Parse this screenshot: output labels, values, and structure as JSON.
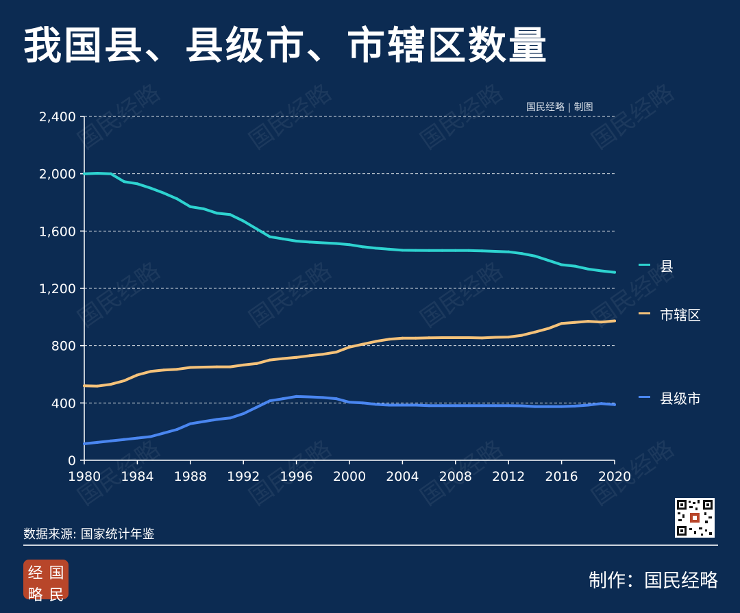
{
  "title": "我国县、县级市、市辖区数量",
  "credit_top": "国民经略 | 制图",
  "source": "数据来源: 国家统计年鉴",
  "maker": "制作：国民经略",
  "logo_chars": [
    "经",
    "国",
    "略",
    "民"
  ],
  "watermark": "国民经略",
  "colors": {
    "background": "#0c2b52",
    "county": "#2ed3d0",
    "district": "#f5c27a",
    "county_city": "#4a86f0",
    "grid": "#ffffff",
    "logo": "#b8462a"
  },
  "legend": [
    {
      "label": "县",
      "color": "#2ed3d0"
    },
    {
      "label": "市辖区",
      "color": "#f5c27a"
    },
    {
      "label": "县级市",
      "color": "#4a86f0"
    }
  ],
  "chart_data": {
    "type": "line",
    "title": "我国县、县级市、市辖区数量",
    "xlabel": "",
    "ylabel": "",
    "ylim": [
      0,
      2400
    ],
    "xlim": [
      1980,
      2020
    ],
    "yticks": [
      0,
      400,
      800,
      1200,
      1600,
      2000,
      2400
    ],
    "ytick_labels": [
      "0",
      "400",
      "800",
      "1,200",
      "1,600",
      "2,000",
      "2,400"
    ],
    "xticks": [
      1980,
      1984,
      1988,
      1992,
      1996,
      2000,
      2004,
      2008,
      2012,
      2016,
      2020
    ],
    "xtick_labels": [
      "1980",
      "1984",
      "1988",
      "1992",
      "1996",
      "2000",
      "2004",
      "2008",
      "2012",
      "2016",
      "2020"
    ],
    "grid": true,
    "x": [
      1980,
      1981,
      1982,
      1983,
      1984,
      1985,
      1986,
      1987,
      1988,
      1989,
      1990,
      1991,
      1992,
      1993,
      1994,
      1995,
      1996,
      1997,
      1998,
      1999,
      2000,
      2001,
      2002,
      2003,
      2004,
      2005,
      2006,
      2007,
      2008,
      2009,
      2010,
      2011,
      2012,
      2013,
      2014,
      2015,
      2016,
      2017,
      2018,
      2019,
      2020
    ],
    "series": [
      {
        "name": "县",
        "color": "#2ed3d0",
        "values": [
          2000,
          2003,
          2000,
          1945,
          1930,
          1900,
          1865,
          1825,
          1770,
          1755,
          1725,
          1715,
          1670,
          1615,
          1560,
          1545,
          1530,
          1523,
          1518,
          1513,
          1505,
          1490,
          1480,
          1473,
          1466,
          1465,
          1464,
          1464,
          1464,
          1464,
          1462,
          1458,
          1455,
          1443,
          1425,
          1395,
          1365,
          1355,
          1335,
          1322,
          1312
        ]
      },
      {
        "name": "市辖区",
        "color": "#f5c27a",
        "values": [
          520,
          518,
          530,
          555,
          595,
          620,
          630,
          635,
          648,
          650,
          652,
          652,
          665,
          675,
          700,
          710,
          718,
          730,
          740,
          755,
          790,
          810,
          830,
          845,
          852,
          852,
          855,
          856,
          856,
          856,
          854,
          858,
          860,
          872,
          895,
          920,
          955,
          962,
          970,
          965,
          973
        ]
      },
      {
        "name": "县级市",
        "color": "#4a86f0",
        "values": [
          115,
          125,
          135,
          145,
          155,
          165,
          190,
          215,
          255,
          270,
          285,
          295,
          325,
          370,
          415,
          430,
          445,
          442,
          438,
          430,
          405,
          400,
          390,
          385,
          385,
          385,
          381,
          381,
          381,
          381,
          381,
          381,
          381,
          380,
          375,
          375,
          375,
          378,
          385,
          396,
          388
        ]
      }
    ]
  }
}
